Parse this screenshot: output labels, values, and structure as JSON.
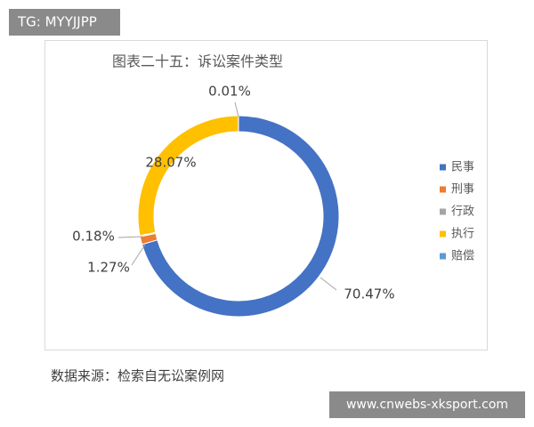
{
  "watermarks": [
    "TG: MYYJJPP",
    "www.cnwebs-xksport.com"
  ],
  "chart_data": {
    "type": "donut",
    "title": "图表二十五：诉讼案件类型",
    "categories": [
      "民事",
      "刑事",
      "行政",
      "执行",
      "赔偿"
    ],
    "values": [
      70.47,
      1.27,
      0.18,
      28.07,
      0.01
    ],
    "value_labels": [
      "70.47%",
      "1.27%",
      "0.18%",
      "28.07%",
      "0.01%"
    ],
    "colors": [
      "#4472c4",
      "#ed7d31",
      "#a5a5a5",
      "#ffc000",
      "#5b9bd5"
    ],
    "legend": "right",
    "source": "数据来源：检索自无讼案例网"
  }
}
